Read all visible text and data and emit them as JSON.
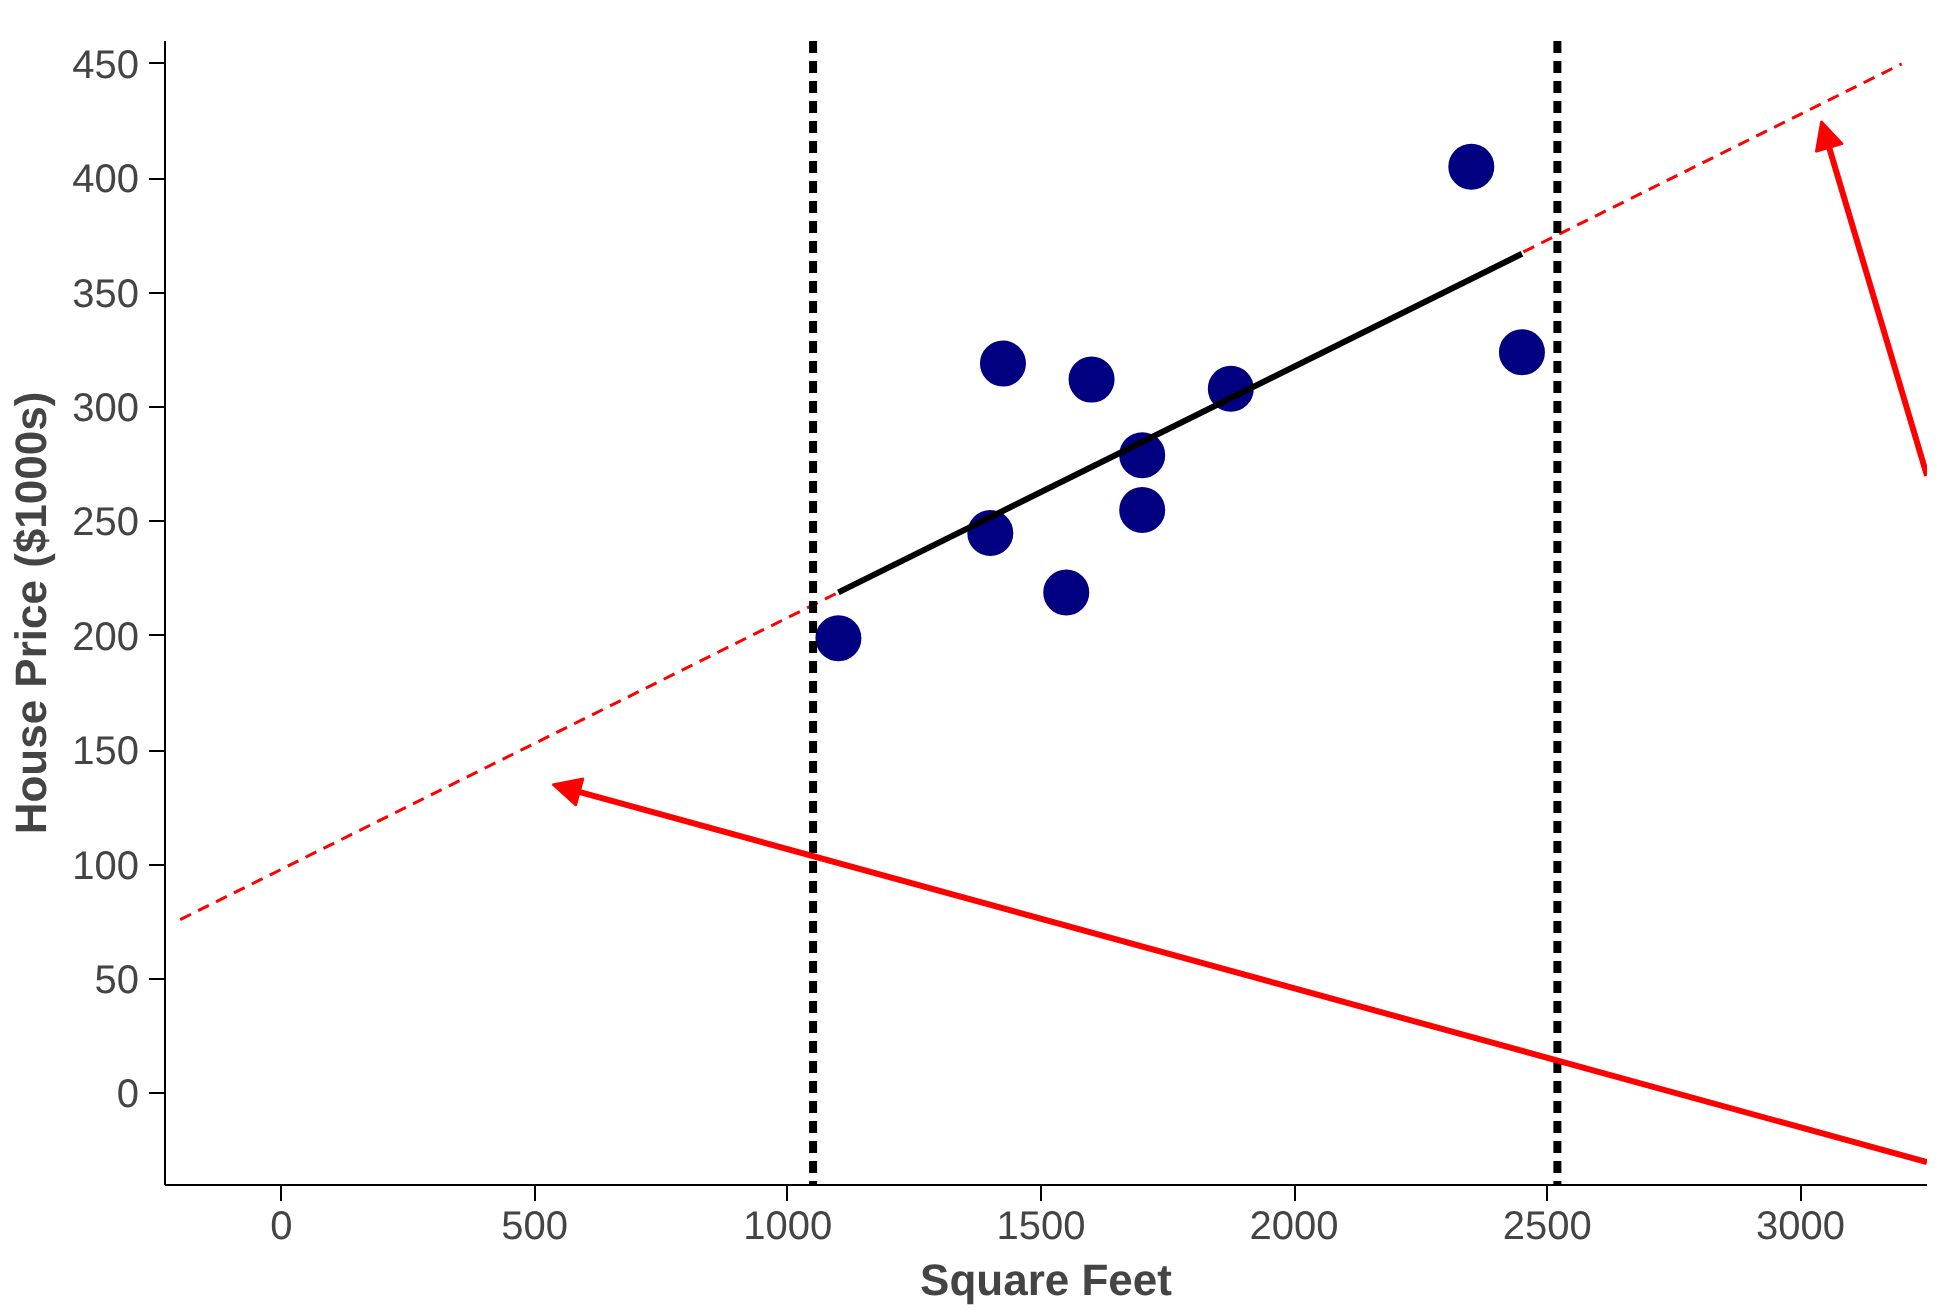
{
  "chart_data": {
    "type": "scatter",
    "xlabel": "Square Feet",
    "ylabel": "House Price ($1000s)",
    "xlim": [
      -230,
      3250
    ],
    "ylim": [
      -40,
      460
    ],
    "xticks": [
      0,
      500,
      1000,
      1500,
      2000,
      2500,
      3000
    ],
    "yticks": [
      0,
      50,
      100,
      150,
      200,
      250,
      300,
      350,
      400,
      450
    ],
    "grid": false,
    "series": [
      {
        "marker": "circle",
        "color": "#000080",
        "x": [
          1100,
          1400,
          1425,
          1550,
          1600,
          1700,
          1700,
          1875,
          2350,
          2450
        ],
        "values": [
          199,
          245,
          319,
          219,
          312,
          279,
          255,
          308,
          405,
          324
        ]
      },
      {
        "type": "line",
        "color": "#ff0000",
        "line_style": "dashed",
        "x": [
          -200,
          3200
        ],
        "values": [
          76,
          450
        ]
      },
      {
        "type": "line",
        "color": "#000000",
        "line_style": "solid",
        "x": [
          1100,
          2450
        ],
        "values": [
          219,
          367
        ]
      }
    ],
    "ref_lines": [
      {
        "axis": "x",
        "value": 1050,
        "color": "#000000",
        "line_style": "dashed"
      },
      {
        "axis": "x",
        "value": 2520,
        "color": "#000000",
        "line_style": "dashed"
      }
    ]
  }
}
